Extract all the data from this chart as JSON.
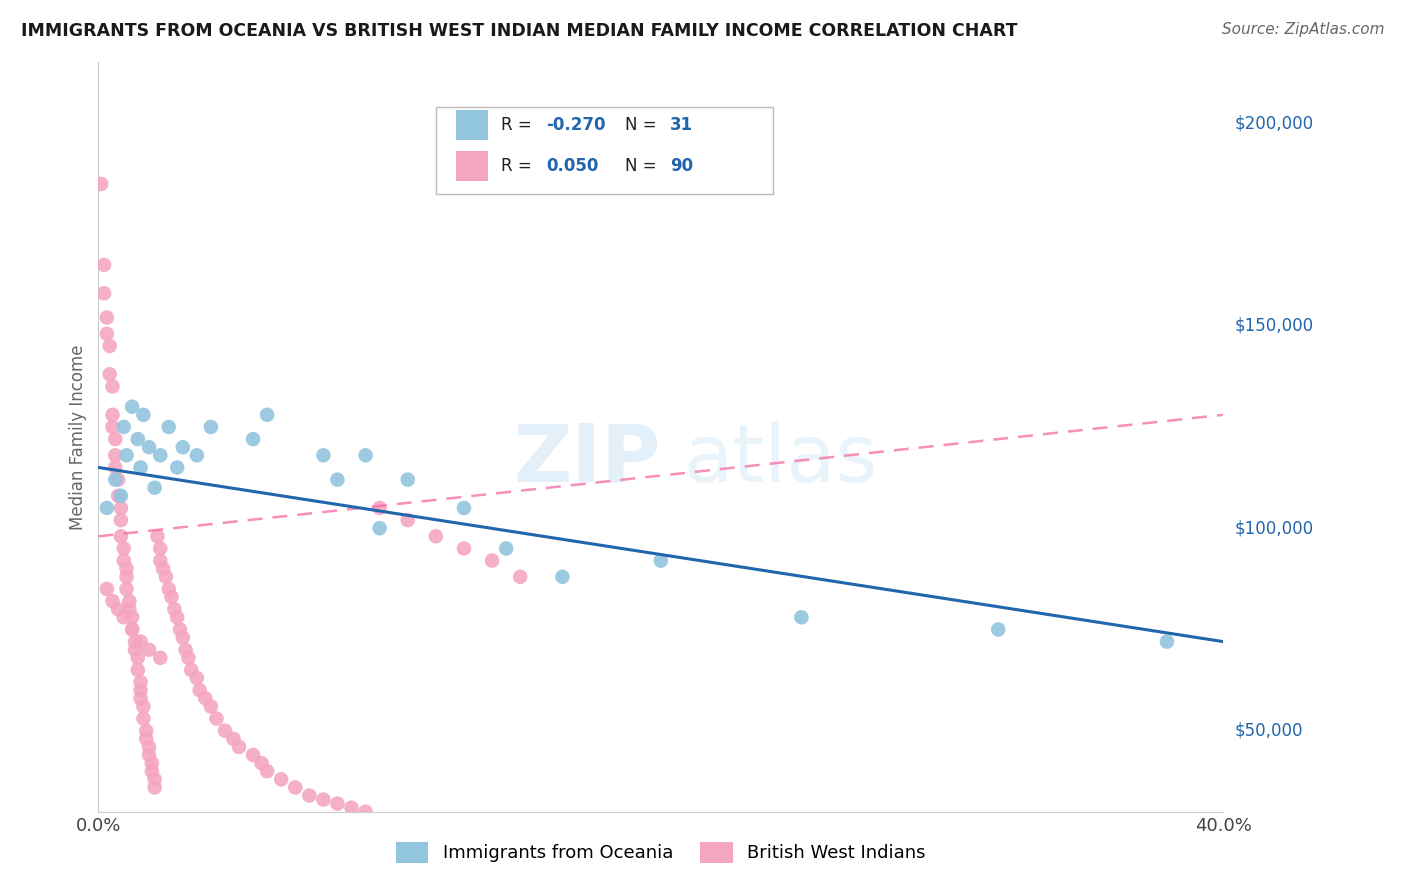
{
  "title": "IMMIGRANTS FROM OCEANIA VS BRITISH WEST INDIAN MEDIAN FAMILY INCOME CORRELATION CHART",
  "source": "Source: ZipAtlas.com",
  "ylabel": "Median Family Income",
  "yticks": [
    50000,
    100000,
    150000,
    200000
  ],
  "ytick_labels": [
    "$50,000",
    "$100,000",
    "$150,000",
    "$200,000"
  ],
  "xmin": 0.0,
  "xmax": 0.4,
  "ymin": 30000,
  "ymax": 215000,
  "blue_color": "#92c5de",
  "pink_color": "#f4a6c0",
  "blue_line_color": "#2166ac",
  "pink_line_color": "#f768a1",
  "blue_r": -0.27,
  "blue_n": 31,
  "pink_r": 0.05,
  "pink_n": 90,
  "blue_x": [
    0.003,
    0.006,
    0.008,
    0.009,
    0.01,
    0.012,
    0.014,
    0.015,
    0.016,
    0.018,
    0.02,
    0.022,
    0.025,
    0.028,
    0.03,
    0.035,
    0.04,
    0.055,
    0.06,
    0.08,
    0.085,
    0.095,
    0.1,
    0.11,
    0.13,
    0.145,
    0.165,
    0.2,
    0.25,
    0.32,
    0.38
  ],
  "blue_y": [
    105000,
    112000,
    108000,
    125000,
    118000,
    130000,
    122000,
    115000,
    128000,
    120000,
    110000,
    118000,
    125000,
    115000,
    120000,
    118000,
    125000,
    122000,
    128000,
    118000,
    112000,
    118000,
    100000,
    112000,
    105000,
    95000,
    88000,
    92000,
    78000,
    75000,
    72000
  ],
  "pink_x": [
    0.001,
    0.002,
    0.002,
    0.003,
    0.003,
    0.004,
    0.004,
    0.005,
    0.005,
    0.005,
    0.006,
    0.006,
    0.006,
    0.007,
    0.007,
    0.008,
    0.008,
    0.008,
    0.009,
    0.009,
    0.01,
    0.01,
    0.01,
    0.011,
    0.011,
    0.012,
    0.012,
    0.013,
    0.013,
    0.014,
    0.014,
    0.015,
    0.015,
    0.015,
    0.016,
    0.016,
    0.017,
    0.017,
    0.018,
    0.018,
    0.019,
    0.019,
    0.02,
    0.02,
    0.021,
    0.022,
    0.022,
    0.023,
    0.024,
    0.025,
    0.026,
    0.027,
    0.028,
    0.029,
    0.03,
    0.031,
    0.032,
    0.033,
    0.035,
    0.036,
    0.038,
    0.04,
    0.042,
    0.045,
    0.048,
    0.05,
    0.055,
    0.058,
    0.06,
    0.065,
    0.07,
    0.075,
    0.08,
    0.085,
    0.09,
    0.095,
    0.1,
    0.11,
    0.12,
    0.13,
    0.14,
    0.15,
    0.003,
    0.005,
    0.007,
    0.009,
    0.012,
    0.015,
    0.018,
    0.022
  ],
  "pink_y": [
    185000,
    165000,
    158000,
    152000,
    148000,
    145000,
    138000,
    135000,
    128000,
    125000,
    122000,
    118000,
    115000,
    112000,
    108000,
    105000,
    102000,
    98000,
    95000,
    92000,
    90000,
    88000,
    85000,
    82000,
    80000,
    78000,
    75000,
    72000,
    70000,
    68000,
    65000,
    62000,
    60000,
    58000,
    56000,
    53000,
    50000,
    48000,
    46000,
    44000,
    42000,
    40000,
    38000,
    36000,
    98000,
    95000,
    92000,
    90000,
    88000,
    85000,
    83000,
    80000,
    78000,
    75000,
    73000,
    70000,
    68000,
    65000,
    63000,
    60000,
    58000,
    56000,
    53000,
    50000,
    48000,
    46000,
    44000,
    42000,
    40000,
    38000,
    36000,
    34000,
    33000,
    32000,
    31000,
    30000,
    105000,
    102000,
    98000,
    95000,
    92000,
    88000,
    85000,
    82000,
    80000,
    78000,
    75000,
    72000,
    70000,
    68000
  ]
}
